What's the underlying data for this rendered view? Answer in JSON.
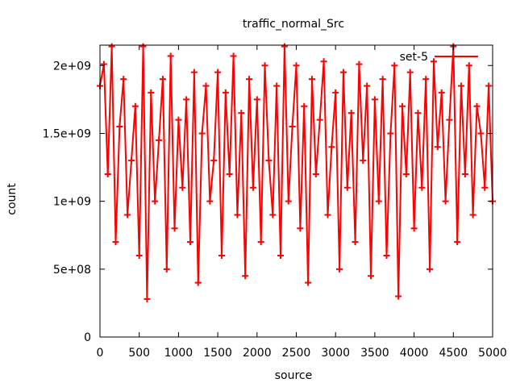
{
  "chart_data": {
    "type": "line",
    "title": "traffic_normal_Src",
    "xlabel": "source",
    "ylabel": "count",
    "xlim": [
      0,
      5000
    ],
    "ylim": [
      0,
      2150000000
    ],
    "x_ticks": [
      {
        "value": 0,
        "label": "0"
      },
      {
        "value": 500,
        "label": "500"
      },
      {
        "value": 1000,
        "label": "1000"
      },
      {
        "value": 1500,
        "label": "1500"
      },
      {
        "value": 2000,
        "label": "2000"
      },
      {
        "value": 2500,
        "label": "2500"
      },
      {
        "value": 3000,
        "label": "3000"
      },
      {
        "value": 3500,
        "label": "3500"
      },
      {
        "value": 4000,
        "label": "4000"
      },
      {
        "value": 4500,
        "label": "4500"
      },
      {
        "value": 5000,
        "label": "5000"
      }
    ],
    "y_ticks": [
      {
        "value": 0,
        "label": "0"
      },
      {
        "value": 500000000,
        "label": "5e+08"
      },
      {
        "value": 1000000000,
        "label": "1e+09"
      },
      {
        "value": 1500000000,
        "label": "1.5e+09"
      },
      {
        "value": 2000000000,
        "label": "2e+09"
      }
    ],
    "grid": false,
    "legend": "top-right",
    "series": [
      {
        "name": "set-5",
        "color": "#ff0000",
        "marker": "plus",
        "x": [
          0,
          50,
          100,
          150,
          200,
          250,
          300,
          350,
          400,
          450,
          500,
          550,
          600,
          650,
          700,
          750,
          800,
          850,
          900,
          950,
          1000,
          1050,
          1100,
          1150,
          1200,
          1250,
          1300,
          1350,
          1400,
          1450,
          1500,
          1550,
          1600,
          1650,
          1700,
          1750,
          1800,
          1850,
          1900,
          1950,
          2000,
          2050,
          2100,
          2150,
          2200,
          2250,
          2300,
          2350,
          2400,
          2450,
          2500,
          2550,
          2600,
          2650,
          2700,
          2750,
          2800,
          2850,
          2900,
          2950,
          3000,
          3050,
          3100,
          3150,
          3200,
          3250,
          3300,
          3350,
          3400,
          3450,
          3500,
          3550,
          3600,
          3650,
          3700,
          3750,
          3800,
          3850,
          3900,
          3950,
          4000,
          4050,
          4100,
          4150,
          4200,
          4250,
          4300,
          4350,
          4400,
          4450,
          4500,
          4550,
          4600,
          4650,
          4700,
          4750,
          4800,
          4850,
          4900,
          4950,
          5000
        ],
        "values": [
          1850000000,
          2010000000,
          1200000000,
          2140000000,
          700000000,
          1550000000,
          1900000000,
          900000000,
          1300000000,
          1700000000,
          600000000,
          2140000000,
          280000000,
          1800000000,
          1000000000,
          1450000000,
          1900000000,
          500000000,
          2070000000,
          800000000,
          1600000000,
          1100000000,
          1750000000,
          700000000,
          1950000000,
          400000000,
          1500000000,
          1850000000,
          1000000000,
          1300000000,
          1950000000,
          600000000,
          1800000000,
          1200000000,
          2070000000,
          900000000,
          1650000000,
          450000000,
          1900000000,
          1100000000,
          1750000000,
          700000000,
          2000000000,
          1300000000,
          900000000,
          1850000000,
          600000000,
          2140000000,
          1000000000,
          1550000000,
          2000000000,
          800000000,
          1700000000,
          400000000,
          1900000000,
          1200000000,
          1600000000,
          2030000000,
          900000000,
          1400000000,
          1800000000,
          500000000,
          1950000000,
          1100000000,
          1650000000,
          700000000,
          2010000000,
          1300000000,
          1850000000,
          450000000,
          1750000000,
          1000000000,
          1900000000,
          600000000,
          1500000000,
          2000000000,
          300000000,
          1700000000,
          1200000000,
          1950000000,
          800000000,
          1650000000,
          1100000000,
          1900000000,
          500000000,
          2030000000,
          1400000000,
          1800000000,
          1000000000,
          1600000000,
          2140000000,
          700000000,
          1850000000,
          1200000000,
          2000000000,
          900000000,
          1700000000,
          1500000000,
          1100000000,
          1850000000,
          1000000000
        ]
      }
    ]
  }
}
